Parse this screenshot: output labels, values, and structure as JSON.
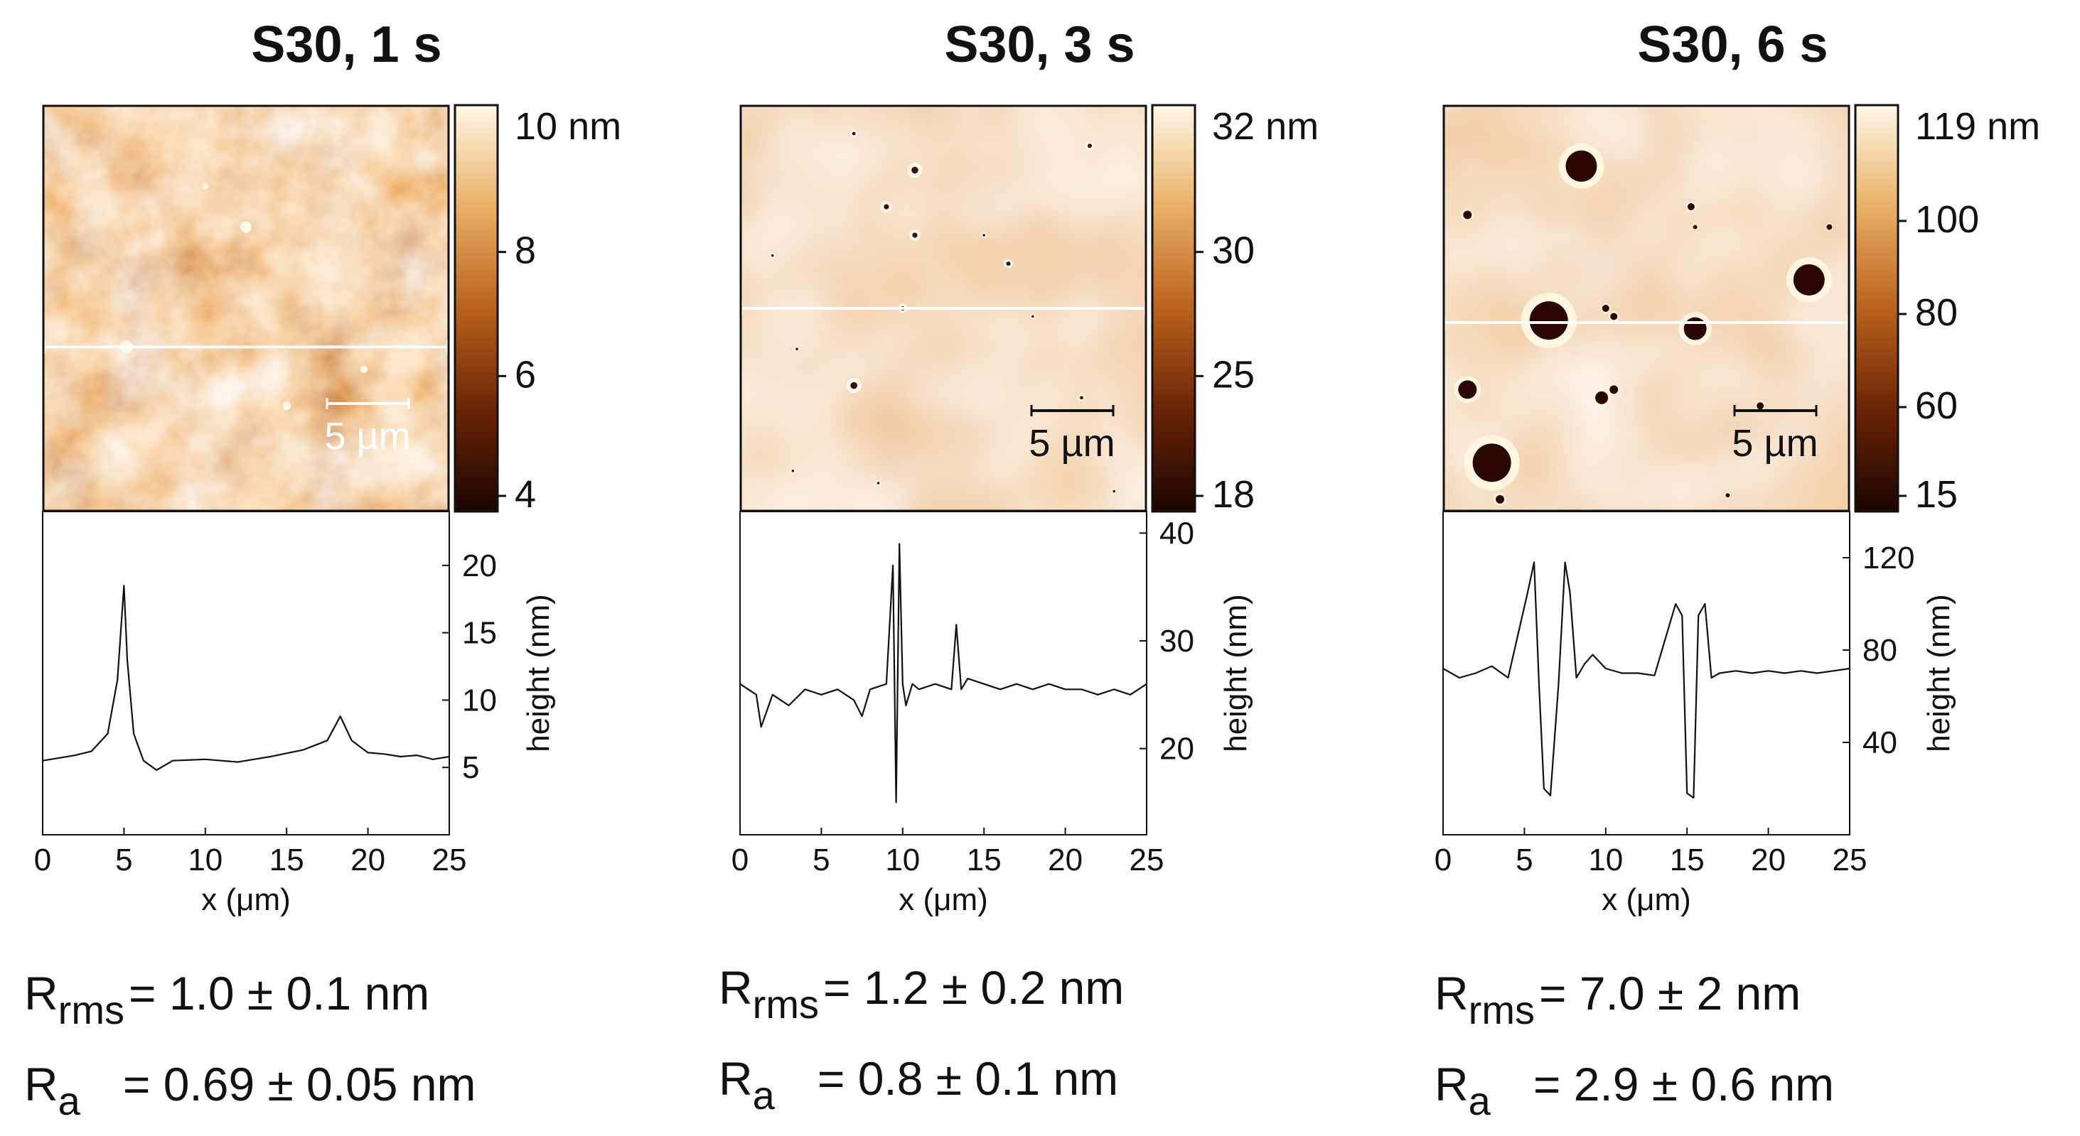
{
  "chart_data": [
    {
      "type": "line",
      "title": "S30, 1 s",
      "scale_bar": "5 µm",
      "colorbar": {
        "unit_label": "10 nm",
        "ticks": [
          "8",
          "6",
          "4"
        ],
        "colors": [
          "#1a0400",
          "#6b2405",
          "#b9621c",
          "#e9b065",
          "#fff7e6"
        ]
      },
      "xlabel": "x (μm)",
      "ylabel": "height (nm)",
      "xlim": [
        0,
        25
      ],
      "ylim": [
        0,
        24
      ],
      "xticks": [
        "0",
        "5",
        "10",
        "15",
        "20",
        "25"
      ],
      "yticks": [
        "20",
        "15",
        "10",
        "5"
      ],
      "x": [
        0,
        1,
        2,
        3,
        4,
        4.6,
        5.0,
        5.2,
        5.6,
        6.2,
        7,
        8,
        10,
        12,
        14,
        16,
        17.5,
        18.3,
        19,
        20,
        21,
        22,
        23,
        24,
        25
      ],
      "values": [
        5.5,
        5.7,
        5.9,
        6.2,
        7.5,
        11.5,
        18.5,
        13,
        7.5,
        5.5,
        4.8,
        5.5,
        5.6,
        5.4,
        5.8,
        6.3,
        7.0,
        8.8,
        7.0,
        6.1,
        6.0,
        5.8,
        5.9,
        5.6,
        5.8
      ],
      "stats": {
        "rrms_label": "R",
        "rrms_sub": "rms",
        "rrms_value": "= 1.0 ± 0.1 nm",
        "ra_label": "R",
        "ra_sub": "a",
        "ra_value": "= 0.69 ± 0.05 nm"
      }
    },
    {
      "type": "line",
      "title": "S30, 3 s",
      "scale_bar": "5 µm",
      "colorbar": {
        "unit_label": "32 nm",
        "ticks": [
          "30",
          "25",
          "18"
        ],
        "colors": [
          "#1a0400",
          "#6b2405",
          "#b9621c",
          "#e9b065",
          "#fff7e6"
        ]
      },
      "xlabel": "x (μm)",
      "ylabel": "height (nm)",
      "xlim": [
        0,
        25
      ],
      "ylim": [
        12,
        42
      ],
      "xticks": [
        "0",
        "5",
        "10",
        "15",
        "20",
        "25"
      ],
      "yticks": [
        "40",
        "30",
        "20"
      ],
      "x": [
        0,
        1,
        1.3,
        2,
        3,
        4,
        5,
        6,
        7,
        7.5,
        8,
        9,
        9.4,
        9.6,
        9.8,
        10.0,
        10.2,
        10.6,
        11,
        12,
        13,
        13.3,
        13.6,
        14,
        15,
        16,
        17,
        18,
        19,
        20,
        21,
        22,
        23,
        24,
        25
      ],
      "values": [
        26,
        25,
        22,
        25,
        24,
        25.5,
        25,
        25.5,
        24.5,
        23,
        25.5,
        26,
        37,
        15,
        39,
        26,
        24,
        26,
        25.5,
        26,
        25.5,
        31.5,
        25.5,
        26.5,
        26,
        25.5,
        26,
        25.5,
        26,
        25.5,
        25.5,
        25,
        25.5,
        25,
        26
      ],
      "stats": {
        "rrms_label": "R",
        "rrms_sub": "rms",
        "rrms_value": "= 1.2 ± 0.2 nm",
        "ra_label": "R",
        "ra_sub": "a",
        "ra_value": "= 0.8 ± 0.1 nm"
      }
    },
    {
      "type": "line",
      "title": "S30, 6 s",
      "scale_bar": "5 µm",
      "colorbar": {
        "unit_label": "119 nm",
        "ticks": [
          "100",
          "80",
          "60",
          "15"
        ],
        "colors": [
          "#1a0400",
          "#6b2405",
          "#b9621c",
          "#e9b065",
          "#fff7e6"
        ]
      },
      "xlabel": "x (μm)",
      "ylabel": "height (nm)",
      "xlim": [
        0,
        25
      ],
      "ylim": [
        0,
        140
      ],
      "xticks": [
        "0",
        "5",
        "10",
        "15",
        "20",
        "25"
      ],
      "yticks": [
        "120",
        "80",
        "40"
      ],
      "x": [
        0,
        1,
        2,
        3,
        4,
        5.2,
        5.6,
        5.9,
        6.2,
        6.6,
        7.1,
        7.5,
        7.8,
        8.2,
        8.7,
        9.2,
        10,
        11,
        12,
        13,
        14.3,
        14.7,
        15.0,
        15.4,
        15.7,
        16.1,
        16.5,
        17,
        18,
        19,
        20,
        21,
        22,
        23,
        24,
        25
      ],
      "values": [
        72,
        68,
        70,
        73,
        68,
        105,
        118,
        65,
        20,
        17,
        65,
        118,
        105,
        68,
        74,
        78,
        72,
        70,
        70,
        69,
        100,
        95,
        18,
        16,
        95,
        100,
        68,
        70,
        71,
        70,
        71,
        70,
        71,
        70,
        71,
        72
      ],
      "stats": {
        "rrms_label": "R",
        "rrms_sub": "rms",
        "rrms_value": "= 7.0 ± 2 nm",
        "ra_label": "R",
        "ra_sub": "a",
        "ra_value": "= 2.9 ± 0.6 nm"
      }
    }
  ]
}
